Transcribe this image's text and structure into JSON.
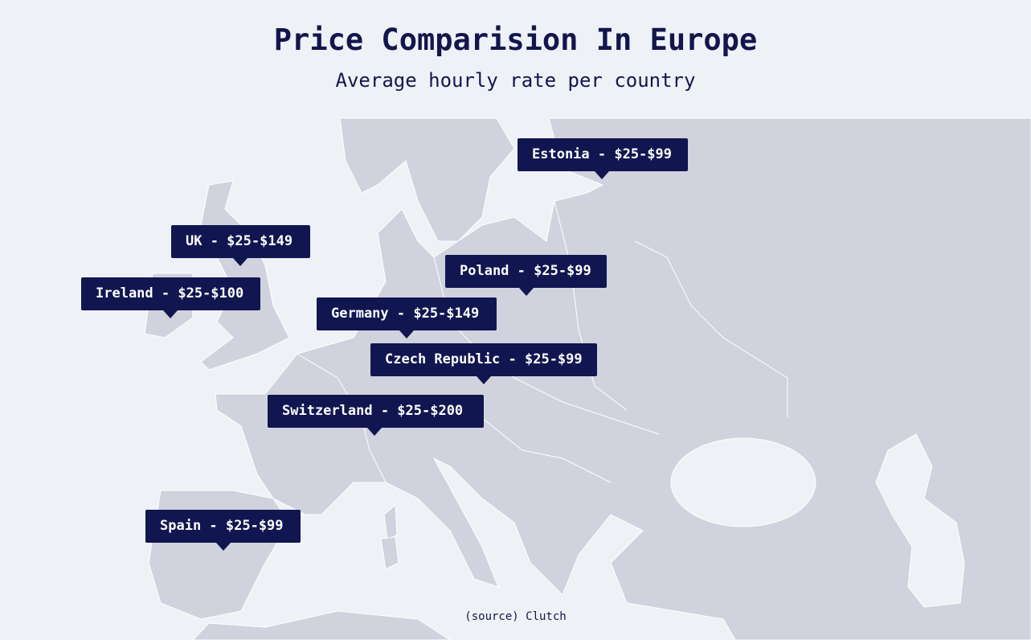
{
  "header": {
    "title": "Price Comparision In Europe",
    "subtitle": "Average hourly rate per country"
  },
  "labels": [
    "Estonia - $25-$99",
    "UK - $25-$149",
    "Poland - $25-$99",
    "Ireland - $25-$100",
    "Germany - $25-$149",
    "Czech Republic - $25-$99",
    "Switzerland - $25-$200",
    "Spain - $25-$99"
  ],
  "source": "(source) Clutch"
}
